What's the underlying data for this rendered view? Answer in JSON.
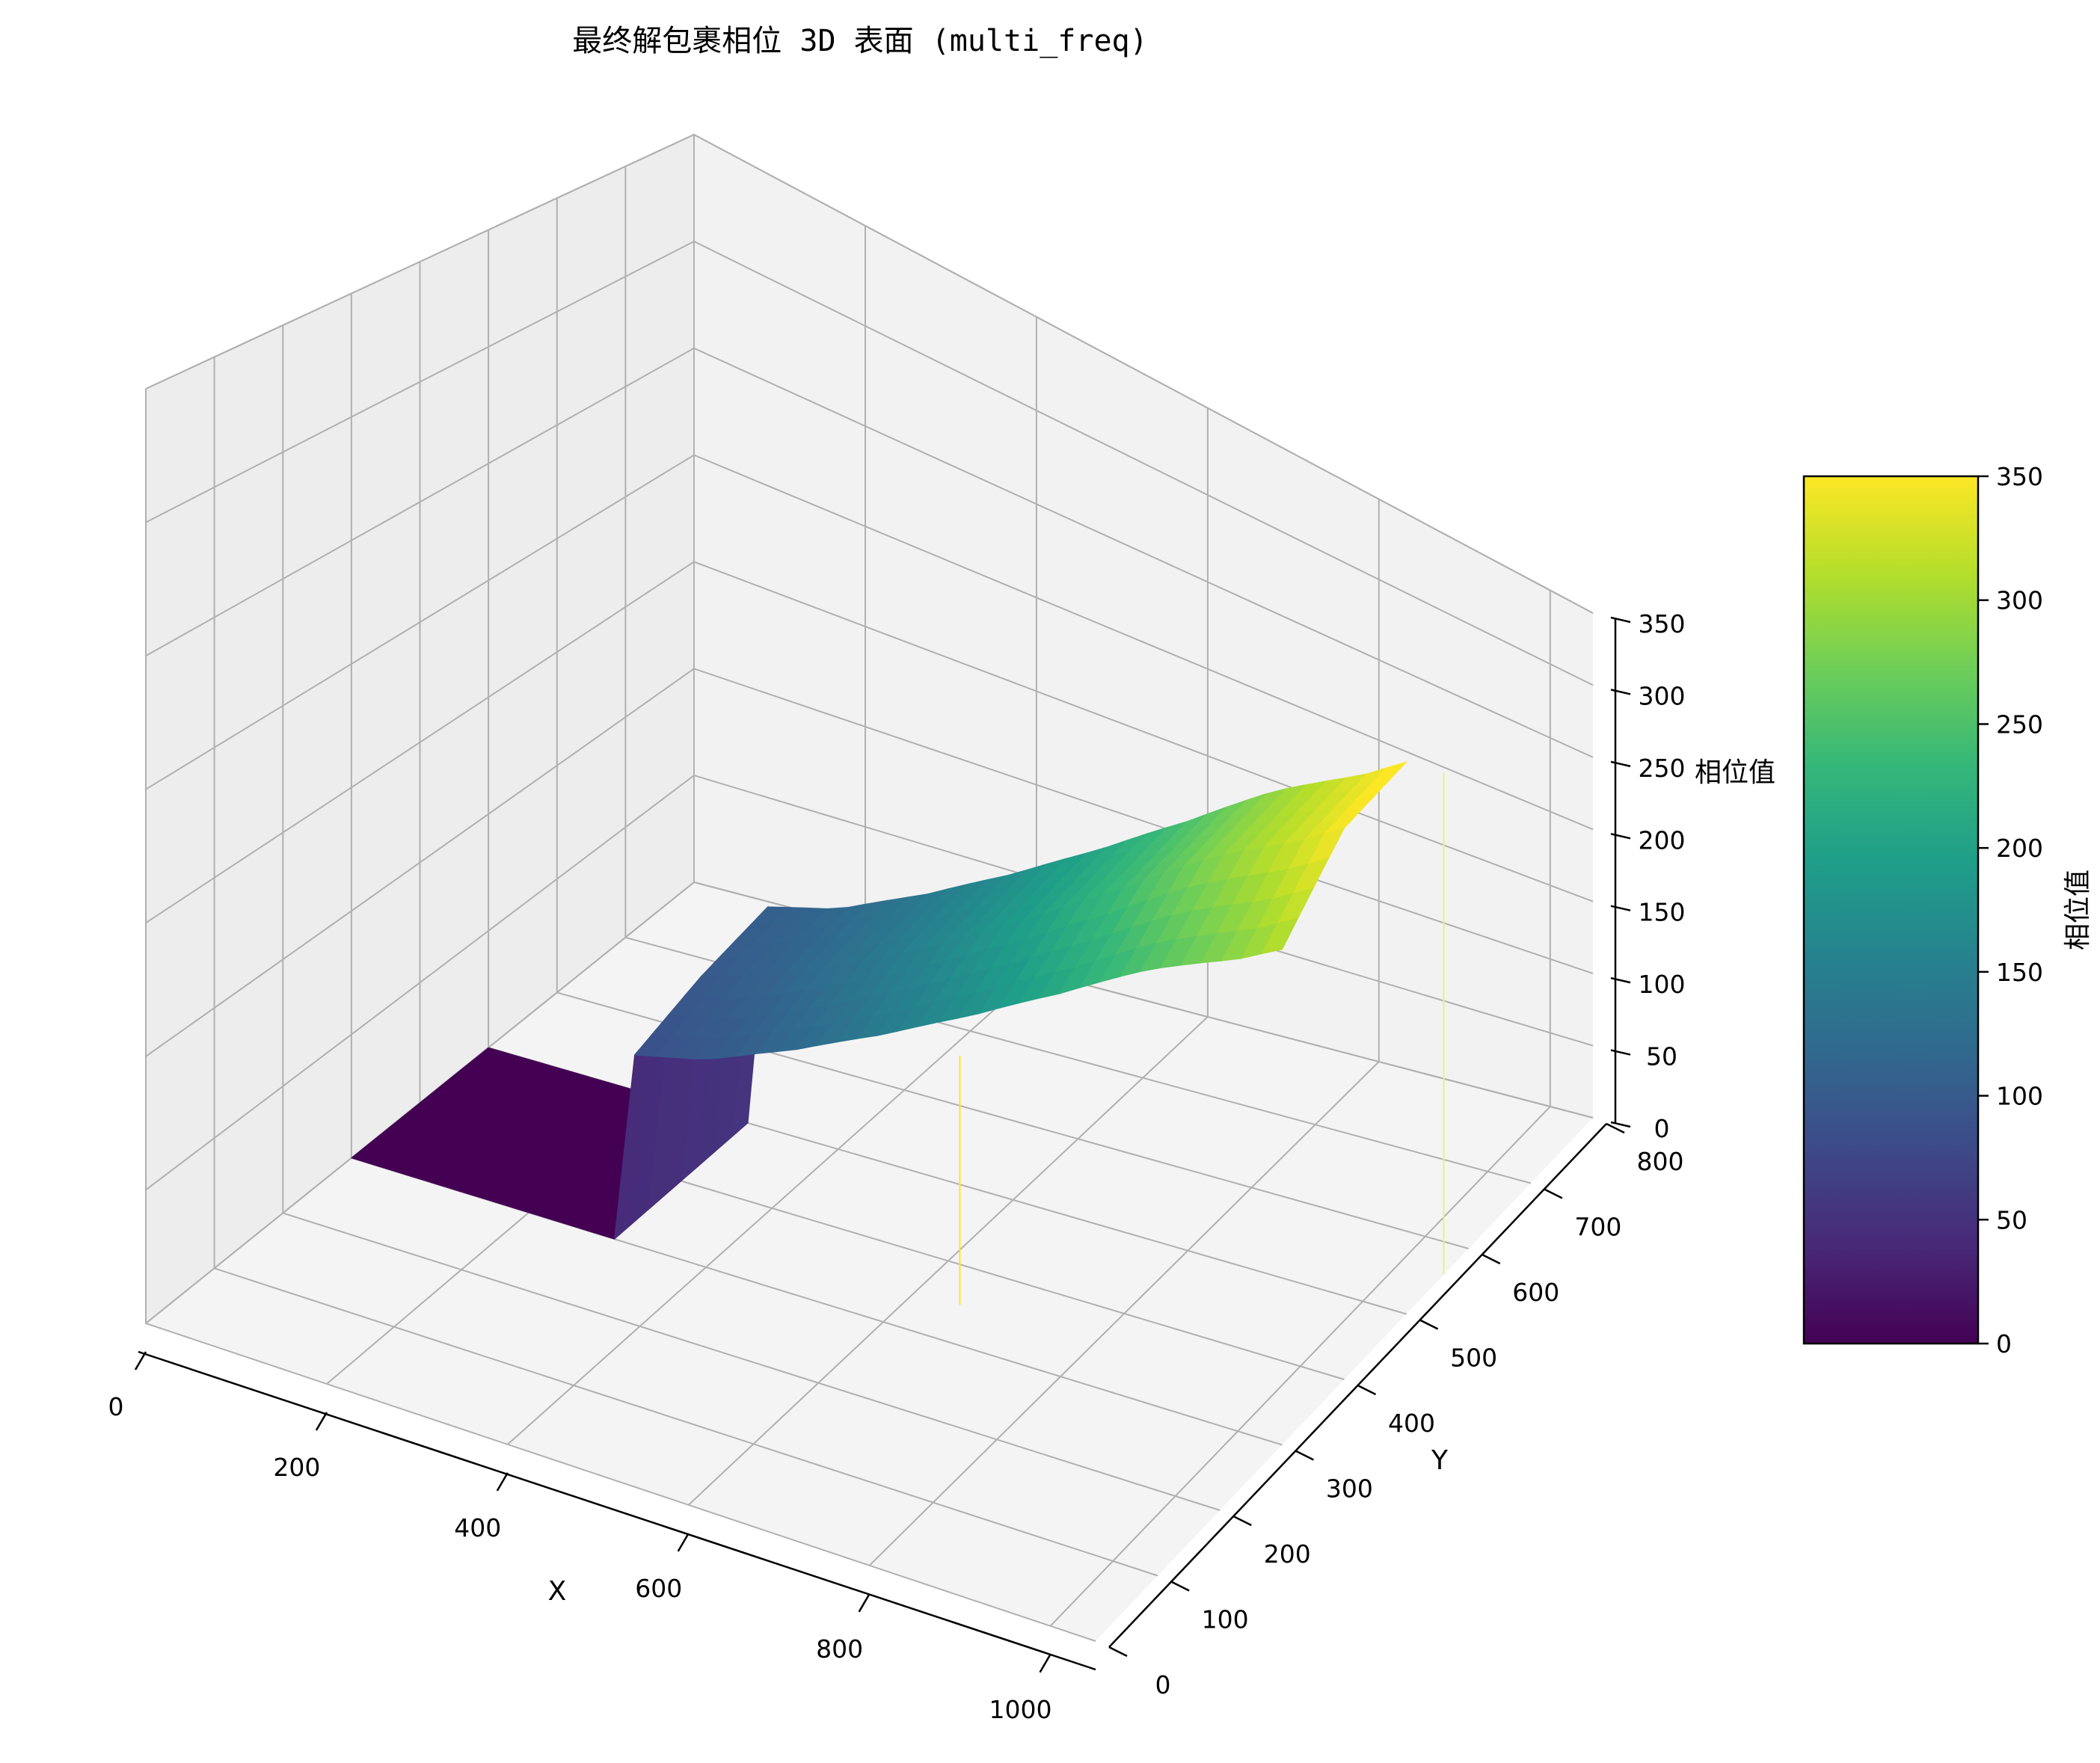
{
  "chart_data": {
    "type": "surface3d",
    "title": "最终解包裹相位 3D 表面 (multi_freq)",
    "xlabel": "X",
    "ylabel": "Y",
    "zlabel": "相位值",
    "colorbar_label": "相位值",
    "colormap": "viridis",
    "xlim": [
      0,
      1050
    ],
    "ylim": [
      0,
      800
    ],
    "zlim": [
      0,
      350
    ],
    "xticks": [
      "0",
      "200",
      "400",
      "600",
      "800",
      "1000"
    ],
    "yticks": [
      "0",
      "100",
      "200",
      "300",
      "400",
      "500",
      "600",
      "700",
      "800"
    ],
    "zticks": [
      "0",
      "50",
      "100",
      "150",
      "200",
      "250",
      "300",
      "350"
    ],
    "colorbar_ticks": [
      "0",
      "50",
      "100",
      "150",
      "200",
      "250",
      "300",
      "350"
    ],
    "colorbar_range": [
      0,
      350
    ],
    "grid": true,
    "surface": {
      "x_range": [
        0,
        1050
      ],
      "y_range": [
        300,
        500
      ],
      "flat_region": {
        "x_max": 300,
        "value": 0
      },
      "phase_at_x": [
        [
          300,
          95
        ],
        [
          400,
          110
        ],
        [
          500,
          135
        ],
        [
          600,
          165
        ],
        [
          700,
          200
        ],
        [
          800,
          240
        ],
        [
          900,
          285
        ],
        [
          1000,
          325
        ],
        [
          1050,
          350
        ]
      ]
    }
  },
  "colors": {
    "pane": "#f2f2f2",
    "grid": "#b0b0b0",
    "axis": "#000000",
    "colormap_stops": [
      "#440154",
      "#482878",
      "#3e4989",
      "#31688e",
      "#26828e",
      "#1f9e89",
      "#35b779",
      "#6ece58",
      "#b5de2b",
      "#fde725"
    ]
  }
}
